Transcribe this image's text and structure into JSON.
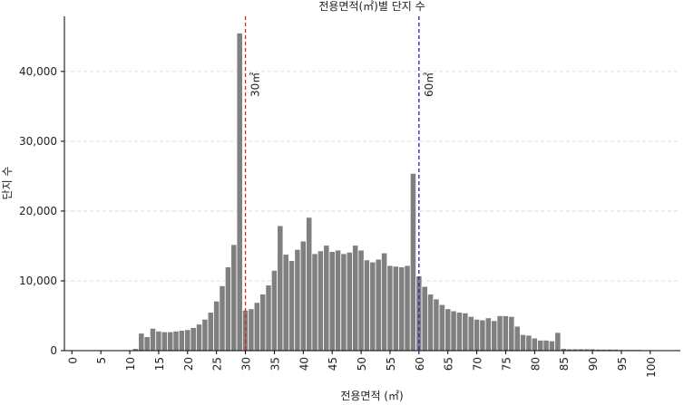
{
  "chart_data": {
    "type": "histogram",
    "title": "전용면적(㎡)별 단지 수",
    "xlabel": "전용면적 (㎡)",
    "ylabel": "단지 수",
    "color": "#808080",
    "bins": [
      -0.5,
      0.5,
      1.5,
      2.5,
      3.5,
      4.5,
      5.5,
      6.5,
      7.5,
      8.5,
      9.5,
      10.5,
      11.5,
      12.5,
      13.5,
      14.5,
      15.5,
      16.5,
      17.5,
      18.5,
      19.5,
      20.5,
      21.5,
      22.5,
      23.5,
      24.5,
      25.5,
      26.5,
      27.5,
      28.5,
      29.5,
      30.5,
      31.5,
      32.5,
      33.5,
      34.5,
      35.5,
      36.5,
      37.5,
      38.5,
      39.5,
      40.5,
      41.5,
      42.5,
      43.5,
      44.5,
      45.5,
      46.5,
      47.5,
      48.5,
      49.5,
      50.5,
      51.5,
      52.5,
      53.5,
      54.5,
      55.5,
      56.5,
      57.5,
      58.5,
      59.5,
      60.5,
      61.5,
      62.5,
      63.5,
      64.5,
      65.5,
      66.5,
      67.5,
      68.5,
      69.5,
      70.5,
      71.5,
      72.5,
      73.5,
      74.5,
      75.5,
      76.5,
      77.5,
      78.5,
      79.5,
      80.5,
      81.5,
      82.5,
      83.5,
      84.5,
      85.5,
      86.5,
      87.5,
      88.5,
      89.5,
      90.5,
      91.5,
      92.5,
      93.5,
      94.5,
      95.5,
      96.5,
      97.5,
      98.5,
      99.5,
      100.5
    ],
    "counts": [
      0,
      0,
      0,
      0,
      0,
      0,
      0,
      0,
      0,
      0,
      100,
      300,
      2500,
      2000,
      3200,
      2800,
      2700,
      2700,
      2800,
      2900,
      3000,
      3300,
      3800,
      4500,
      5500,
      7100,
      9300,
      12000,
      15200,
      45500,
      5800,
      6000,
      6900,
      8100,
      9400,
      11500,
      17900,
      13800,
      12900,
      14500,
      15700,
      19100,
      13900,
      14300,
      15100,
      14200,
      14400,
      13900,
      14100,
      15100,
      14400,
      13000,
      12700,
      13100,
      14000,
      12200,
      12100,
      12000,
      12200,
      25400,
      10700,
      9200,
      8100,
      7400,
      6600,
      6000,
      5700,
      5500,
      5400,
      4900,
      4500,
      4400,
      4700,
      4300,
      5000,
      5000,
      4900,
      3500,
      2300,
      2200,
      1800,
      1500,
      1500,
      1400,
      2600,
      300,
      250,
      250,
      250,
      250,
      250,
      200,
      200,
      200,
      200,
      150,
      150,
      150,
      150,
      100,
      100
    ],
    "xlim": [
      -1.3,
      105.2
    ],
    "ylim": [
      0,
      47900
    ],
    "xticks": [
      0,
      5,
      10,
      15,
      20,
      25,
      30,
      35,
      40,
      45,
      50,
      55,
      60,
      65,
      70,
      75,
      80,
      85,
      90,
      95,
      100
    ],
    "yticks": [
      0,
      {
        "value": 10000,
        "label": "10,000"
      },
      {
        "value": 20000,
        "label": "20,000"
      },
      {
        "value": 30000,
        "label": "30,000"
      },
      {
        "value": 40000,
        "label": "40,000"
      }
    ],
    "grid": true,
    "vlines": [
      {
        "value": 30,
        "label": "30㎡",
        "color": "#d62728"
      },
      {
        "value": 60,
        "label": "60㎡",
        "color": "#1f1fcc"
      }
    ]
  }
}
